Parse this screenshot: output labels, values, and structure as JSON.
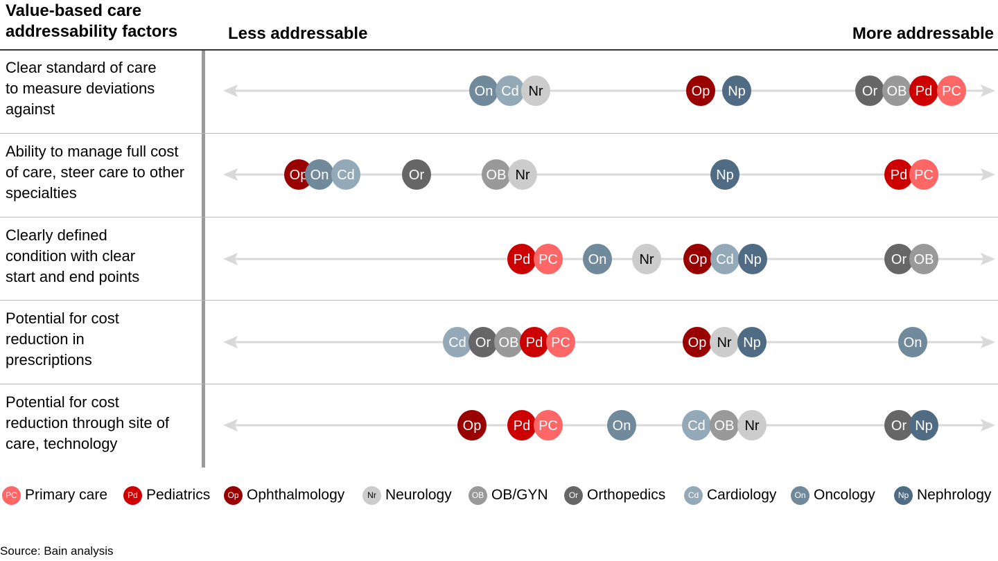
{
  "header": {
    "factors_title": "Value-based care addressability factors",
    "left_label": "Less addressable",
    "right_label": "More addressable"
  },
  "specialties": {
    "PC": {
      "abbr": "PC",
      "name": "Primary care",
      "color": "#ff6666",
      "text_color": "#ffffff"
    },
    "Pd": {
      "abbr": "Pd",
      "name": "Pediatrics",
      "color": "#cc0000",
      "text_color": "#ffffff"
    },
    "Op": {
      "abbr": "Op",
      "name": "Ophthalmology",
      "color": "#990000",
      "text_color": "#ffffff"
    },
    "Nr": {
      "abbr": "Nr",
      "name": "Neurology",
      "color": "#cccccc",
      "text_color": "#000000"
    },
    "OB": {
      "abbr": "OB",
      "name": "OB/GYN",
      "color": "#999999",
      "text_color": "#ffffff"
    },
    "Or": {
      "abbr": "Or",
      "name": "Orthopedics",
      "color": "#666666",
      "text_color": "#ffffff"
    },
    "Cd": {
      "abbr": "Cd",
      "name": "Cardiology",
      "color": "#94a9b8",
      "text_color": "#ffffff"
    },
    "On": {
      "abbr": "On",
      "name": "Oncology",
      "color": "#708a9c",
      "text_color": "#ffffff"
    },
    "Np": {
      "abbr": "Np",
      "name": "Nephrology",
      "color": "#506c85",
      "text_color": "#ffffff"
    }
  },
  "legend_order": [
    "PC",
    "Pd",
    "Op",
    "Nr",
    "OB",
    "Or",
    "Cd",
    "On",
    "Np"
  ],
  "rows": [
    {
      "label": "Clear standard of care to measure deviations against",
      "groups_less_to_more": [
        [
          "On",
          "Cd",
          "Nr"
        ],
        [
          "Op",
          "Np"
        ],
        [
          "Or",
          "OB",
          "Pd",
          "PC"
        ]
      ]
    },
    {
      "label": "Ability to manage full cost of care, steer care to other specialties",
      "groups_less_to_more": [
        [
          "Op",
          "On",
          "Cd"
        ],
        [
          "Or"
        ],
        [
          "OB",
          "Nr"
        ],
        [
          "Np"
        ],
        [
          "Pd",
          "PC"
        ]
      ]
    },
    {
      "label": "Clearly defined condition with clear start and end points",
      "groups_less_to_more": [
        [
          "Pd",
          "PC"
        ],
        [
          "On"
        ],
        [
          "Nr"
        ],
        [
          "Op",
          "Cd",
          "Np"
        ],
        [
          "Or",
          "OB"
        ]
      ]
    },
    {
      "label": "Potential for cost reduction in prescriptions",
      "groups_less_to_more": [
        [
          "Cd",
          "Or",
          "OB",
          "Pd",
          "PC"
        ],
        [
          "Op",
          "Nr",
          "Np"
        ],
        [
          "On"
        ]
      ]
    },
    {
      "label": "Potential for cost reduction through site of care, technology",
      "groups_less_to_more": [
        [
          "Op"
        ],
        [
          "Pd",
          "PC"
        ],
        [
          "On"
        ],
        [
          "Cd",
          "OB",
          "Nr"
        ],
        [
          "Or",
          "Np"
        ]
      ]
    }
  ],
  "source": "Source: Bain analysis"
}
